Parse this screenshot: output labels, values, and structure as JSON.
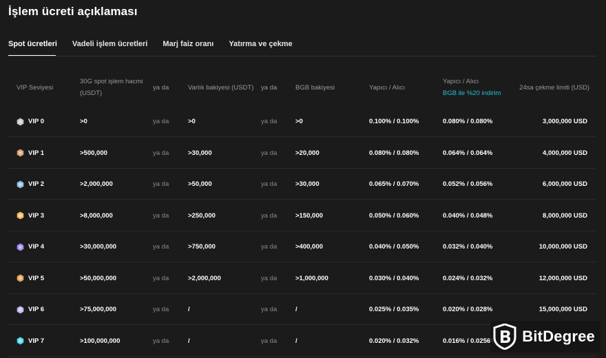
{
  "page_title": "İşlem ücreti açıklaması",
  "tabs": [
    {
      "label": "Spot ücretleri",
      "active": true
    },
    {
      "label": "Vadeli işlem ücretleri",
      "active": false
    },
    {
      "label": "Marj faiz oranı",
      "active": false
    },
    {
      "label": "Yatırma ve çekme",
      "active": false
    }
  ],
  "header": {
    "vip_level": "VIP Seviyesi",
    "volume_line1": "30G spot işlem hacmi",
    "volume_line2": "(USDT)",
    "or1": "ya da",
    "asset_balance": "Varlık bakiyesi (USDT)",
    "or2": "ya da",
    "bgb_balance": "BGB bakiyesi",
    "maker_taker": "Yapıcı / Alıcı",
    "maker_taker_bgb": "Yapıcı / Alıcı",
    "bgb_discount": "BGB ile %20 indirim",
    "withdraw_limit": "24sa çekme limiti (USD)"
  },
  "rows": [
    {
      "vip": "VIP 0",
      "color": "#c9c9c9",
      "volume": ">0",
      "or1": "ya da",
      "asset": ">0",
      "or2": "ya da",
      "bgb": ">0",
      "fee": "0.100% / 0.100%",
      "fee_bgb": "0.080% / 0.080%",
      "limit": "3,000,000 USD"
    },
    {
      "vip": "VIP 1",
      "color": "#d9a073",
      "volume": ">500,000",
      "or1": "ya da",
      "asset": ">30,000",
      "or2": "ya da",
      "bgb": ">20,000",
      "fee": "0.080% / 0.080%",
      "fee_bgb": "0.064% / 0.064%",
      "limit": "4,000,000 USD"
    },
    {
      "vip": "VIP 2",
      "color": "#8fc1ea",
      "volume": ">2,000,000",
      "or1": "ya da",
      "asset": ">50,000",
      "or2": "ya da",
      "bgb": ">30,000",
      "fee": "0.065% / 0.070%",
      "fee_bgb": "0.052% / 0.056%",
      "limit": "6,000,000 USD"
    },
    {
      "vip": "VIP 3",
      "color": "#f2bd63",
      "volume": ">8,000,000",
      "or1": "ya da",
      "asset": ">250,000",
      "or2": "ya da",
      "bgb": ">150,000",
      "fee": "0.050% / 0.060%",
      "fee_bgb": "0.040% / 0.048%",
      "limit": "8,000,000 USD"
    },
    {
      "vip": "VIP 4",
      "color": "#a58af0",
      "volume": ">30,000,000",
      "or1": "ya da",
      "asset": ">750,000",
      "or2": "ya da",
      "bgb": ">400,000",
      "fee": "0.040% / 0.050%",
      "fee_bgb": "0.032% / 0.040%",
      "limit": "10,000,000 USD"
    },
    {
      "vip": "VIP 5",
      "color": "#e7a45a",
      "volume": ">50,000,000",
      "or1": "ya da",
      "asset": ">2,000,000",
      "or2": "ya da",
      "bgb": ">1,000,000",
      "fee": "0.030% / 0.040%",
      "fee_bgb": "0.024% / 0.032%",
      "limit": "12,000,000 USD"
    },
    {
      "vip": "VIP 6",
      "color": "#c6b4f2",
      "volume": ">75,000,000",
      "or1": "ya da",
      "asset": "/",
      "or2": "ya da",
      "bgb": "/",
      "fee": "0.025% / 0.035%",
      "fee_bgb": "0.020% / 0.028%",
      "limit": "15,000,000 USD"
    },
    {
      "vip": "VIP 7",
      "color": "#4fd8e6",
      "volume": ">100,000,000",
      "or1": "ya da",
      "asset": "/",
      "or2": "ya da",
      "bgb": "/",
      "fee": "0.020% / 0.032%",
      "fee_bgb": "0.016% / 0.0256%",
      "limit": ""
    }
  ],
  "watermark": {
    "text": "BitDegree",
    "logo": "bitdegree-shield-logo"
  }
}
